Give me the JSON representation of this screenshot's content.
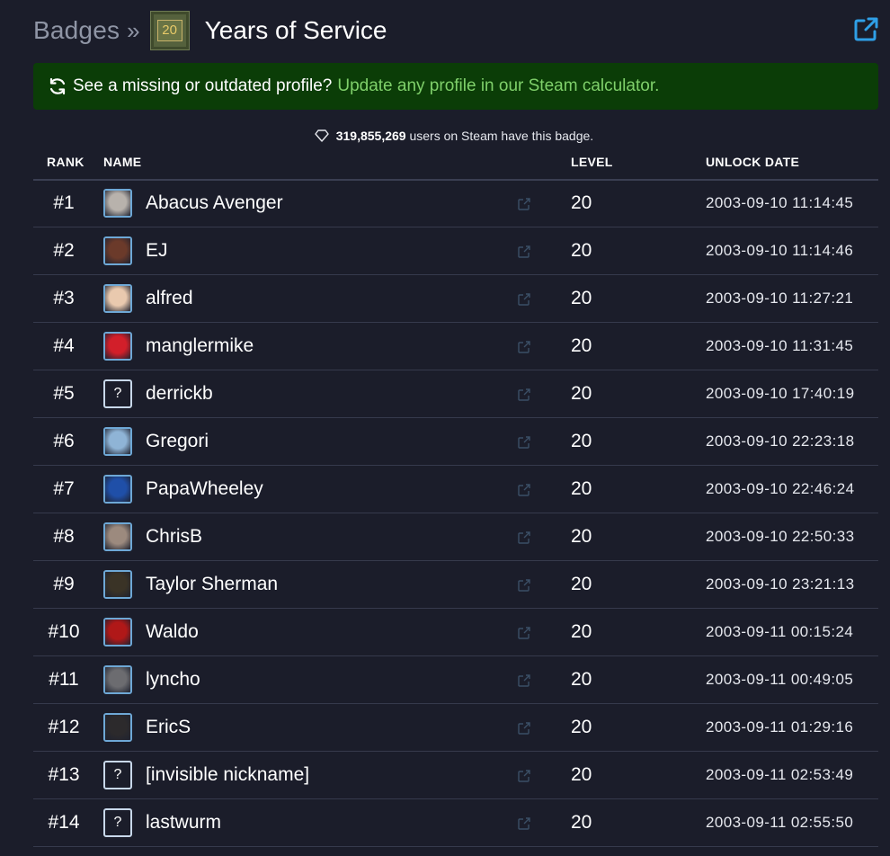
{
  "header": {
    "breadcrumb": "Badges",
    "separator": "»",
    "badge_icon_text": "20",
    "title": "Years of Service"
  },
  "banner": {
    "text": "See a missing or outdated profile?",
    "link": "Update any profile in our Steam calculator."
  },
  "summary": {
    "count": "319,855,269",
    "suffix": "users on Steam have this badge."
  },
  "table": {
    "headers": {
      "rank": "RANK",
      "name": "NAME",
      "level": "LEVEL",
      "date": "UNLOCK DATE"
    },
    "rows": [
      {
        "rank": "#1",
        "name": "Abacus Avenger",
        "level": "20",
        "date": "2003-09-10 11:14:45",
        "avatar": "avatar-abacus",
        "color": "#b8b2ac"
      },
      {
        "rank": "#2",
        "name": "EJ",
        "level": "20",
        "date": "2003-09-10 11:14:46",
        "avatar": "avatar-ej",
        "color": "#6b3a2a"
      },
      {
        "rank": "#3",
        "name": "alfred",
        "level": "20",
        "date": "2003-09-10 11:27:21",
        "avatar": "avatar-baby",
        "color": "#e9c9ae"
      },
      {
        "rank": "#4",
        "name": "manglermike",
        "level": "20",
        "date": "2003-09-10 11:31:45",
        "avatar": "avatar-pattern",
        "color": "#d21f2a"
      },
      {
        "rank": "#5",
        "name": "derrickb",
        "level": "20",
        "date": "2003-09-10 17:40:19",
        "avatar": "unknown",
        "color": ""
      },
      {
        "rank": "#6",
        "name": "Gregori",
        "level": "20",
        "date": "2003-09-10 22:23:18",
        "avatar": "avatar-ice",
        "color": "#8fb4d6"
      },
      {
        "rank": "#7",
        "name": "PapaWheeley",
        "level": "20",
        "date": "2003-09-10 22:46:24",
        "avatar": "avatar-note",
        "color": "#1f4fa8"
      },
      {
        "rank": "#8",
        "name": "ChrisB",
        "level": "20",
        "date": "2003-09-10 22:50:33",
        "avatar": "avatar-hands",
        "color": "#9c8a7e"
      },
      {
        "rank": "#9",
        "name": "Taylor Sherman",
        "level": "20",
        "date": "2003-09-10 23:21:13",
        "avatar": "avatar-blade",
        "color": "#3a3326"
      },
      {
        "rank": "#10",
        "name": "Waldo",
        "level": "20",
        "date": "2003-09-11 00:15:24",
        "avatar": "avatar-red",
        "color": "#b01818"
      },
      {
        "rank": "#11",
        "name": "lyncho",
        "level": "20",
        "date": "2003-09-11 00:49:05",
        "avatar": "avatar-stripe",
        "color": "#6c6c70"
      },
      {
        "rank": "#12",
        "name": "EricS",
        "level": "20",
        "date": "2003-09-11 01:29:16",
        "avatar": "avatar-dark",
        "color": "#2c2a2c"
      },
      {
        "rank": "#13",
        "name": "[invisible nickname]",
        "level": "20",
        "date": "2003-09-11 02:53:49",
        "avatar": "unknown",
        "color": ""
      },
      {
        "rank": "#14",
        "name": "lastwurm",
        "level": "20",
        "date": "2003-09-11 02:55:50",
        "avatar": "unknown",
        "color": ""
      }
    ]
  },
  "unknown_avatar_glyph": "?"
}
